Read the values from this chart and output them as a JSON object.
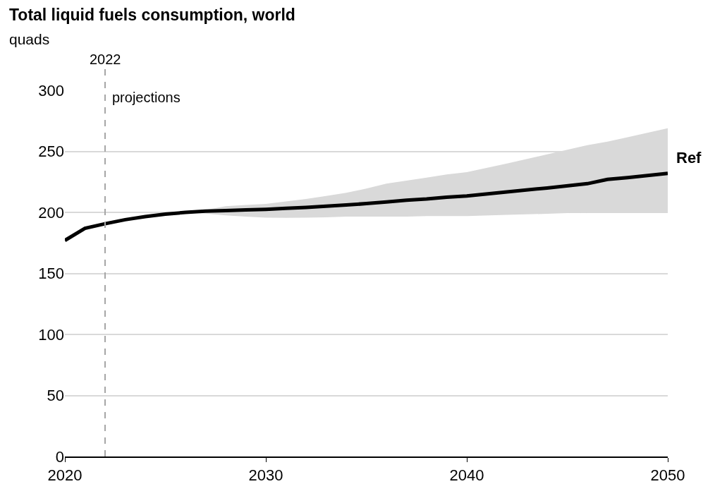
{
  "chart_data": {
    "type": "line",
    "title": "Total liquid fuels consumption, world",
    "ylabel": "quads",
    "x": [
      2020,
      2021,
      2022,
      2023,
      2024,
      2025,
      2026,
      2027,
      2028,
      2029,
      2030,
      2031,
      2032,
      2033,
      2034,
      2035,
      2036,
      2037,
      2038,
      2039,
      2040,
      2042,
      2044,
      2046,
      2047,
      2048,
      2050
    ],
    "series": [
      {
        "name": "Ref",
        "color": "#000000",
        "values": [
          177,
          187,
          190.7,
          194,
          196.5,
          198.5,
          200,
          201,
          201.5,
          202,
          202.5,
          203.3,
          204,
          205,
          206,
          207.2,
          208.5,
          210,
          211,
          212.4,
          213.5,
          216.8,
          220,
          223.5,
          227,
          228.5,
          232
        ],
        "lower": [
          null,
          null,
          null,
          null,
          null,
          null,
          200,
          199,
          197.5,
          196.5,
          195.6,
          195.5,
          195.6,
          196,
          196.5,
          196.5,
          196.5,
          196.5,
          197,
          197,
          197,
          198,
          198.8,
          200,
          200,
          200,
          200
        ],
        "upper": [
          null,
          null,
          null,
          null,
          null,
          null,
          200,
          202,
          205,
          206,
          207,
          209,
          211,
          213.5,
          216,
          219.5,
          223.5,
          226,
          228.5,
          231,
          233,
          240,
          247.6,
          255,
          258,
          261.5,
          269
        ]
      }
    ],
    "xlim": [
      2020,
      2050
    ],
    "xticks": [
      2020,
      2030,
      2040,
      2050
    ],
    "ylim": [
      0,
      300
    ],
    "yticks": [
      0,
      50,
      100,
      150,
      200,
      250,
      300
    ],
    "grid": "y",
    "legend": false,
    "marker": "none",
    "line_style": "solid",
    "ref_lines": [
      {
        "axis": "x",
        "value": 2022,
        "label": "2022",
        "color": "#a6a6a6",
        "line_style": "dashed"
      }
    ],
    "annotations": [
      "projections"
    ]
  }
}
